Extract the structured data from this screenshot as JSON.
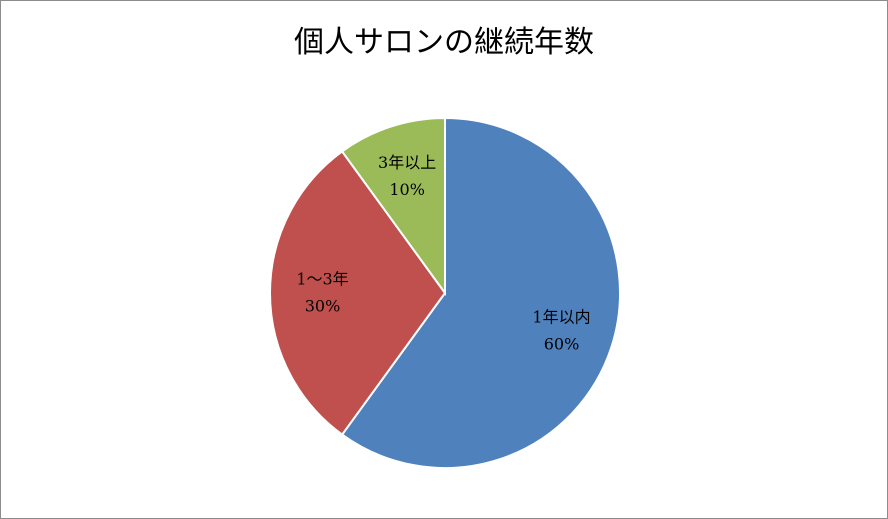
{
  "chart_data": {
    "type": "pie",
    "title": "個人サロンの継続年数",
    "categories": [
      "1年以内",
      "1～3年",
      "3年以上"
    ],
    "values": [
      60,
      30,
      10
    ],
    "value_labels": [
      "60%",
      "30%",
      "10%"
    ],
    "colors": [
      "#4f81bd",
      "#c0504d",
      "#9bbb59"
    ]
  }
}
